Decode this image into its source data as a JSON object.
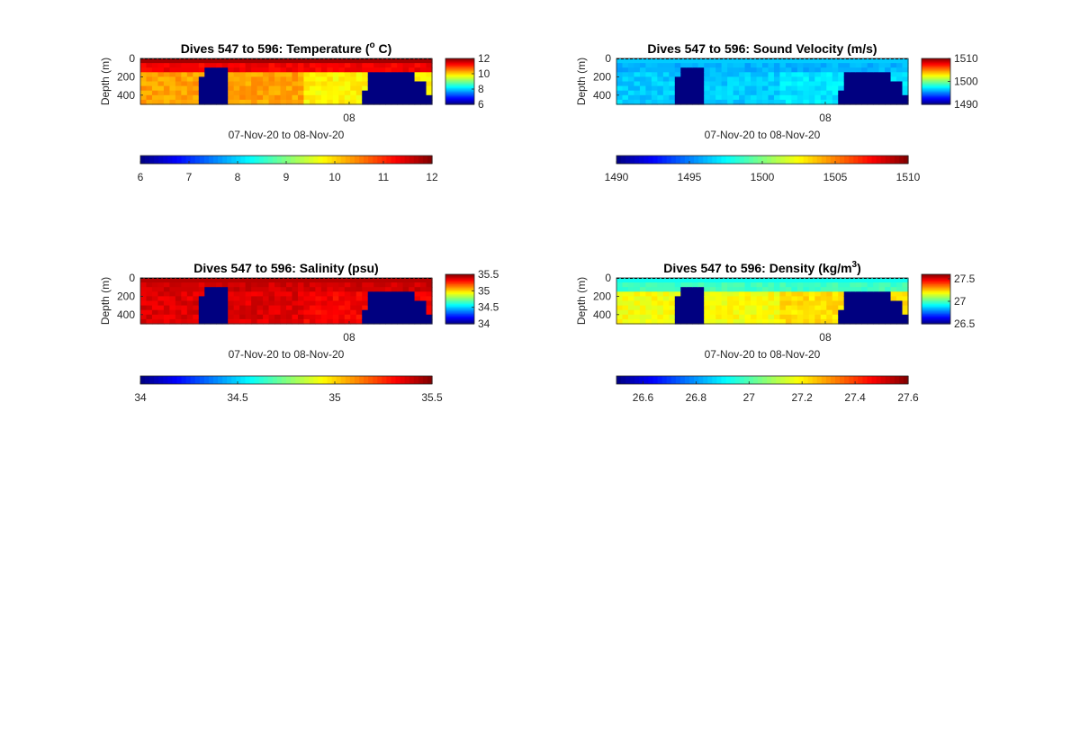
{
  "chart_data": [
    {
      "type": "heatmap",
      "title": "Dives 547 to 596: Temperature (",
      "title_sup": "o",
      "title_suffix": " C)",
      "ylabel": "Depth (m)",
      "xlabel": "07-Nov-20 to 08-Nov-20",
      "x_tick_labels": [
        "08"
      ],
      "y_ticks": [
        0,
        200,
        400
      ],
      "ylim": [
        0,
        500
      ],
      "y_reversed": true,
      "colormap": "jet",
      "clim": [
        6,
        12
      ],
      "side_colorbar_ticks": [
        "12",
        "10",
        "8",
        "6"
      ],
      "side_colorbar_values": [
        12,
        10,
        8,
        6
      ],
      "bottom_colorbar_ticks": [
        "6",
        "7",
        "8",
        "9",
        "10",
        "11",
        "12"
      ],
      "bottom_colorbar_values": [
        6,
        7,
        8,
        9,
        10,
        11,
        12
      ],
      "profile": {
        "surface": 11.8,
        "mix": 11.3,
        "deep": 10.3,
        "n_deep": 9.8,
        "fill": 6
      }
    },
    {
      "type": "heatmap",
      "title": "Dives 547 to 596: Sound Velocity (m/s)",
      "ylabel": "Depth (m)",
      "xlabel": "07-Nov-20 to 08-Nov-20",
      "x_tick_labels": [
        "08"
      ],
      "y_ticks": [
        0,
        200,
        400
      ],
      "ylim": [
        0,
        500
      ],
      "y_reversed": true,
      "colormap": "jet",
      "clim": [
        1490,
        1510
      ],
      "side_colorbar_ticks": [
        "1510",
        "1500",
        "1490"
      ],
      "side_colorbar_values": [
        1510,
        1500,
        1490
      ],
      "bottom_colorbar_ticks": [
        "1490",
        "1495",
        "1500",
        "1505",
        "1510"
      ],
      "bottom_colorbar_values": [
        1490,
        1495,
        1500,
        1505,
        1510
      ],
      "profile": {
        "surface": 1496.5,
        "mix": 1496.0,
        "deep": 1496.5,
        "n_deep": 1497.0,
        "fill": 1490
      }
    },
    {
      "type": "heatmap",
      "title": "Dives 547 to 596: Salinity (psu)",
      "ylabel": "Depth (m)",
      "xlabel": "07-Nov-20 to 08-Nov-20",
      "x_tick_labels": [
        "08"
      ],
      "y_ticks": [
        0,
        200,
        400
      ],
      "ylim": [
        0,
        500
      ],
      "y_reversed": true,
      "colormap": "jet",
      "clim": [
        34,
        35.5
      ],
      "side_colorbar_ticks": [
        "35.5",
        "35",
        "34.5",
        "34"
      ],
      "side_colorbar_values": [
        35.5,
        35,
        34.5,
        34
      ],
      "bottom_colorbar_ticks": [
        "34",
        "34.5",
        "35",
        "35.5"
      ],
      "bottom_colorbar_values": [
        34,
        34.5,
        35,
        35.5
      ],
      "profile": {
        "surface": 35.42,
        "mix": 35.38,
        "deep": 35.36,
        "n_deep": 35.32,
        "fill": 34
      }
    },
    {
      "type": "heatmap",
      "title": "Dives 547 to 596: Density (kg/m",
      "title_sup": "3",
      "title_suffix": ")",
      "ylabel": "Depth (m)",
      "xlabel": "07-Nov-20 to 08-Nov-20",
      "x_tick_labels": [
        "08"
      ],
      "y_ticks": [
        0,
        200,
        400
      ],
      "ylim": [
        0,
        500
      ],
      "y_reversed": true,
      "colormap": "jet",
      "clim": [
        26.5,
        27.6
      ],
      "side_colorbar_ticks": [
        "27.5",
        "27",
        "26.5"
      ],
      "side_colorbar_values": [
        27.5,
        27,
        26.5
      ],
      "bottom_colorbar_ticks": [
        "26.6",
        "26.8",
        "27",
        "27.2",
        "27.4",
        "27.6"
      ],
      "bottom_colorbar_values": [
        26.6,
        26.8,
        27,
        27.2,
        27.4,
        27.6
      ],
      "profile": {
        "surface": 26.93,
        "mix": 26.98,
        "deep": 27.18,
        "n_deep": 27.22,
        "fill": 26.5
      }
    }
  ]
}
